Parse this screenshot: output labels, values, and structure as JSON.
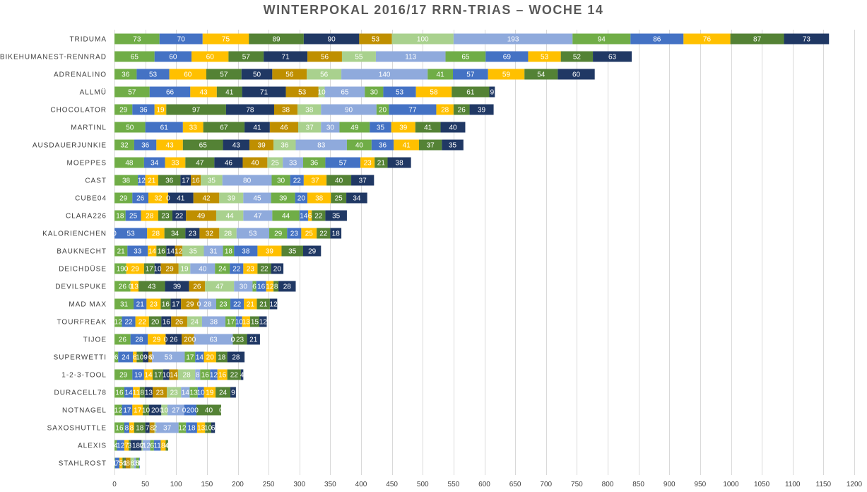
{
  "chart_data": {
    "type": "bar",
    "orientation": "horizontal",
    "stacked": true,
    "title": "WINTERPOKAL 2016/17 RRN-TRIAS – WOCHE 14",
    "xlim": [
      0,
      1200
    ],
    "xticks": [
      0,
      50,
      100,
      150,
      200,
      250,
      300,
      350,
      400,
      450,
      500,
      550,
      600,
      650,
      700,
      750,
      800,
      850,
      900,
      950,
      1000,
      1050,
      1100,
      1150,
      1200
    ],
    "grid": "vertical",
    "legend": "none",
    "colors": [
      "#70AD47",
      "#4472C4",
      "#FFC000",
      "#548235",
      "#203864",
      "#BF8F00",
      "#A9D18E",
      "#8FAADC"
    ],
    "categories": [
      "TRIDUMA",
      "BIKEHUMANEST-RENNRAD",
      "ADRENALINO",
      "ALLMÜ",
      "CHOCOLATOR",
      "MARTINL",
      "AUSDAUERJUNKIE",
      "MOEPPES",
      "CAST",
      "CUBE04",
      "CLARA226",
      "KALORIENCHEN",
      "BAUKNECHT",
      "DEICHDÜSE",
      "DEVILSPUKE",
      "MAD MAX",
      "TOURFREAK",
      "TIJOE",
      "SUPERWETTI",
      "1-2-3-TOOL",
      "DURACELL78",
      "NOTNAGEL",
      "SAXOSHUTTLE",
      "ALEXIS",
      "STAHLROST"
    ],
    "values": [
      [
        73,
        70,
        75,
        89,
        90,
        53,
        100,
        193,
        94,
        86,
        76,
        87,
        73
      ],
      [
        65,
        60,
        60,
        57,
        71,
        56,
        55,
        113,
        65,
        69,
        53,
        52,
        63
      ],
      [
        36,
        53,
        60,
        57,
        50,
        56,
        56,
        140,
        41,
        57,
        59,
        54,
        60
      ],
      [
        57,
        66,
        43,
        41,
        71,
        53,
        10,
        65,
        30,
        53,
        58,
        61,
        9
      ],
      [
        29,
        36,
        19,
        97,
        78,
        38,
        38,
        90,
        20,
        77,
        28,
        26,
        39
      ],
      [
        50,
        61,
        33,
        67,
        41,
        46,
        37,
        30,
        49,
        35,
        39,
        41,
        40
      ],
      [
        32,
        36,
        43,
        65,
        43,
        39,
        36,
        83,
        40,
        36,
        41,
        37,
        35
      ],
      [
        48,
        34,
        33,
        47,
        46,
        40,
        25,
        33,
        36,
        57,
        23,
        21,
        38
      ],
      [
        38,
        12,
        21,
        36,
        17,
        16,
        35,
        80,
        30,
        22,
        37,
        40,
        37
      ],
      [
        29,
        26,
        32,
        0,
        41,
        42,
        39,
        45,
        39,
        20,
        38,
        25,
        34
      ],
      [
        18,
        25,
        28,
        23,
        22,
        49,
        44,
        47,
        44,
        14,
        6,
        22,
        35
      ],
      [
        0,
        53,
        28,
        34,
        23,
        32,
        28,
        53,
        29,
        23,
        25,
        22,
        18
      ],
      [
        21,
        33,
        14,
        16,
        14,
        12,
        35,
        31,
        18,
        38,
        39,
        35,
        29
      ],
      [
        19,
        0,
        29,
        17,
        10,
        29,
        19,
        40,
        24,
        22,
        23,
        22,
        20
      ],
      [
        26,
        0,
        13,
        43,
        39,
        26,
        47,
        30,
        6,
        16,
        12,
        8,
        28
      ],
      [
        31,
        21,
        23,
        16,
        17,
        29,
        0,
        28,
        23,
        22,
        21,
        21,
        12
      ],
      [
        12,
        22,
        22,
        20,
        16,
        26,
        24,
        38,
        17,
        10,
        13,
        15,
        12
      ],
      [
        26,
        28,
        29,
        0,
        26,
        20,
        0,
        63,
        0,
        0,
        0,
        23,
        21
      ],
      [
        6,
        24,
        6,
        10,
        9,
        6,
        0,
        53,
        17,
        14,
        20,
        18,
        28
      ],
      [
        29,
        19,
        14,
        17,
        10,
        14,
        28,
        8,
        16,
        12,
        16,
        22,
        4
      ],
      [
        16,
        14,
        11,
        8,
        13,
        23,
        23,
        14,
        13,
        10,
        19,
        24,
        9
      ],
      [
        12,
        17,
        17,
        10,
        20,
        0,
        10,
        27,
        0,
        20,
        0,
        40,
        0
      ],
      [
        16,
        8,
        8,
        18,
        7,
        8,
        2,
        37,
        12,
        18,
        13,
        10,
        6
      ],
      [
        4,
        12,
        7,
        3,
        18,
        0,
        2,
        12,
        6,
        11,
        8,
        4,
        0
      ],
      [
        1,
        7,
        5,
        4,
        1,
        8,
        6,
        3,
        5,
        1,
        0,
        0,
        0
      ]
    ]
  }
}
